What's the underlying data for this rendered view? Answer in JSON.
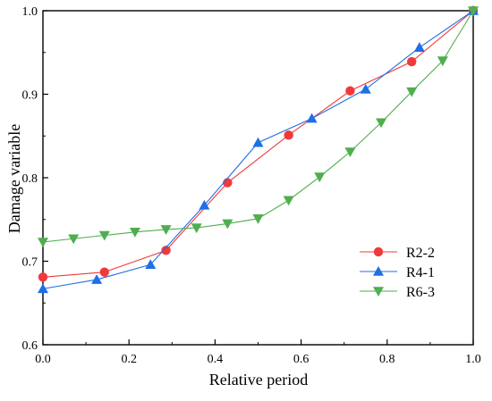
{
  "chart_data": {
    "type": "line",
    "title": "",
    "xlabel": "Relative period",
    "ylabel": "Damage variable",
    "xlim": [
      0.0,
      1.0
    ],
    "ylim": [
      0.6,
      1.0
    ],
    "x_ticks": [
      0.0,
      0.2,
      0.4,
      0.6,
      0.8,
      1.0
    ],
    "y_ticks": [
      0.6,
      0.7,
      0.8,
      0.9,
      1.0
    ],
    "x_tick_labels": [
      "0.0",
      "0.2",
      "0.4",
      "0.6",
      "0.8",
      "1.0"
    ],
    "y_tick_labels": [
      "0.6",
      "0.7",
      "0.8",
      "0.9",
      "1.0"
    ],
    "grid": false,
    "legend_position": "lower-right",
    "series": [
      {
        "name": "R2-2",
        "color": "#f03a3a",
        "marker": "circle",
        "x": [
          0.0,
          0.143,
          0.286,
          0.429,
          0.571,
          0.714,
          0.857,
          1.0
        ],
        "values": [
          0.681,
          0.687,
          0.713,
          0.794,
          0.851,
          0.904,
          0.939,
          1.0
        ]
      },
      {
        "name": "R4-1",
        "color": "#1f6fe6",
        "marker": "triangle-up",
        "x": [
          0.0,
          0.125,
          0.25,
          0.375,
          0.5,
          0.625,
          0.75,
          0.875,
          1.0
        ],
        "values": [
          0.667,
          0.678,
          0.696,
          0.767,
          0.842,
          0.871,
          0.906,
          0.956,
          1.0
        ]
      },
      {
        "name": "R6-3",
        "color": "#4fae4f",
        "marker": "triangle-down",
        "x": [
          0.0,
          0.071,
          0.143,
          0.214,
          0.286,
          0.357,
          0.429,
          0.5,
          0.571,
          0.643,
          0.714,
          0.786,
          0.857,
          0.929,
          1.0
        ],
        "values": [
          0.723,
          0.727,
          0.731,
          0.735,
          0.738,
          0.74,
          0.745,
          0.751,
          0.773,
          0.801,
          0.831,
          0.866,
          0.903,
          0.94,
          1.0
        ]
      }
    ]
  }
}
